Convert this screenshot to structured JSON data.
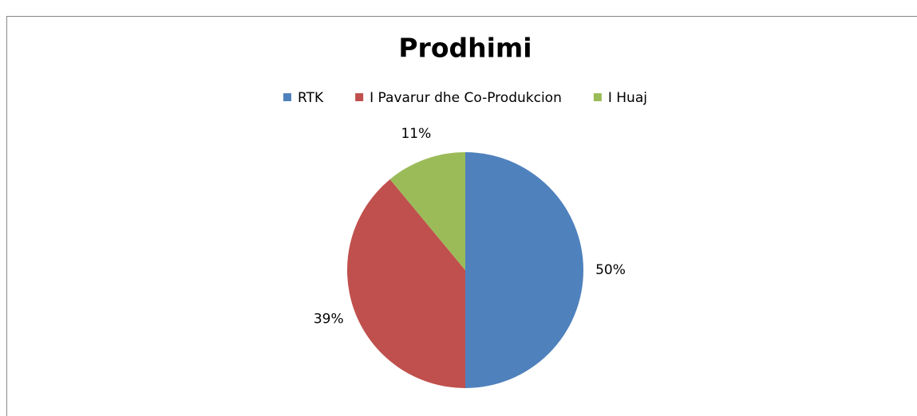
{
  "chart_data": {
    "type": "pie",
    "title": "Prodhimi",
    "categories": [
      "RTK",
      "I Pavarur dhe Co-Produkcion",
      "I Huaj"
    ],
    "values": [
      50,
      39,
      11
    ],
    "value_labels": [
      "50%",
      "39%",
      "11%"
    ],
    "colors": [
      "#4f81bd",
      "#c0504d",
      "#9bbb59"
    ],
    "legend": "top"
  }
}
